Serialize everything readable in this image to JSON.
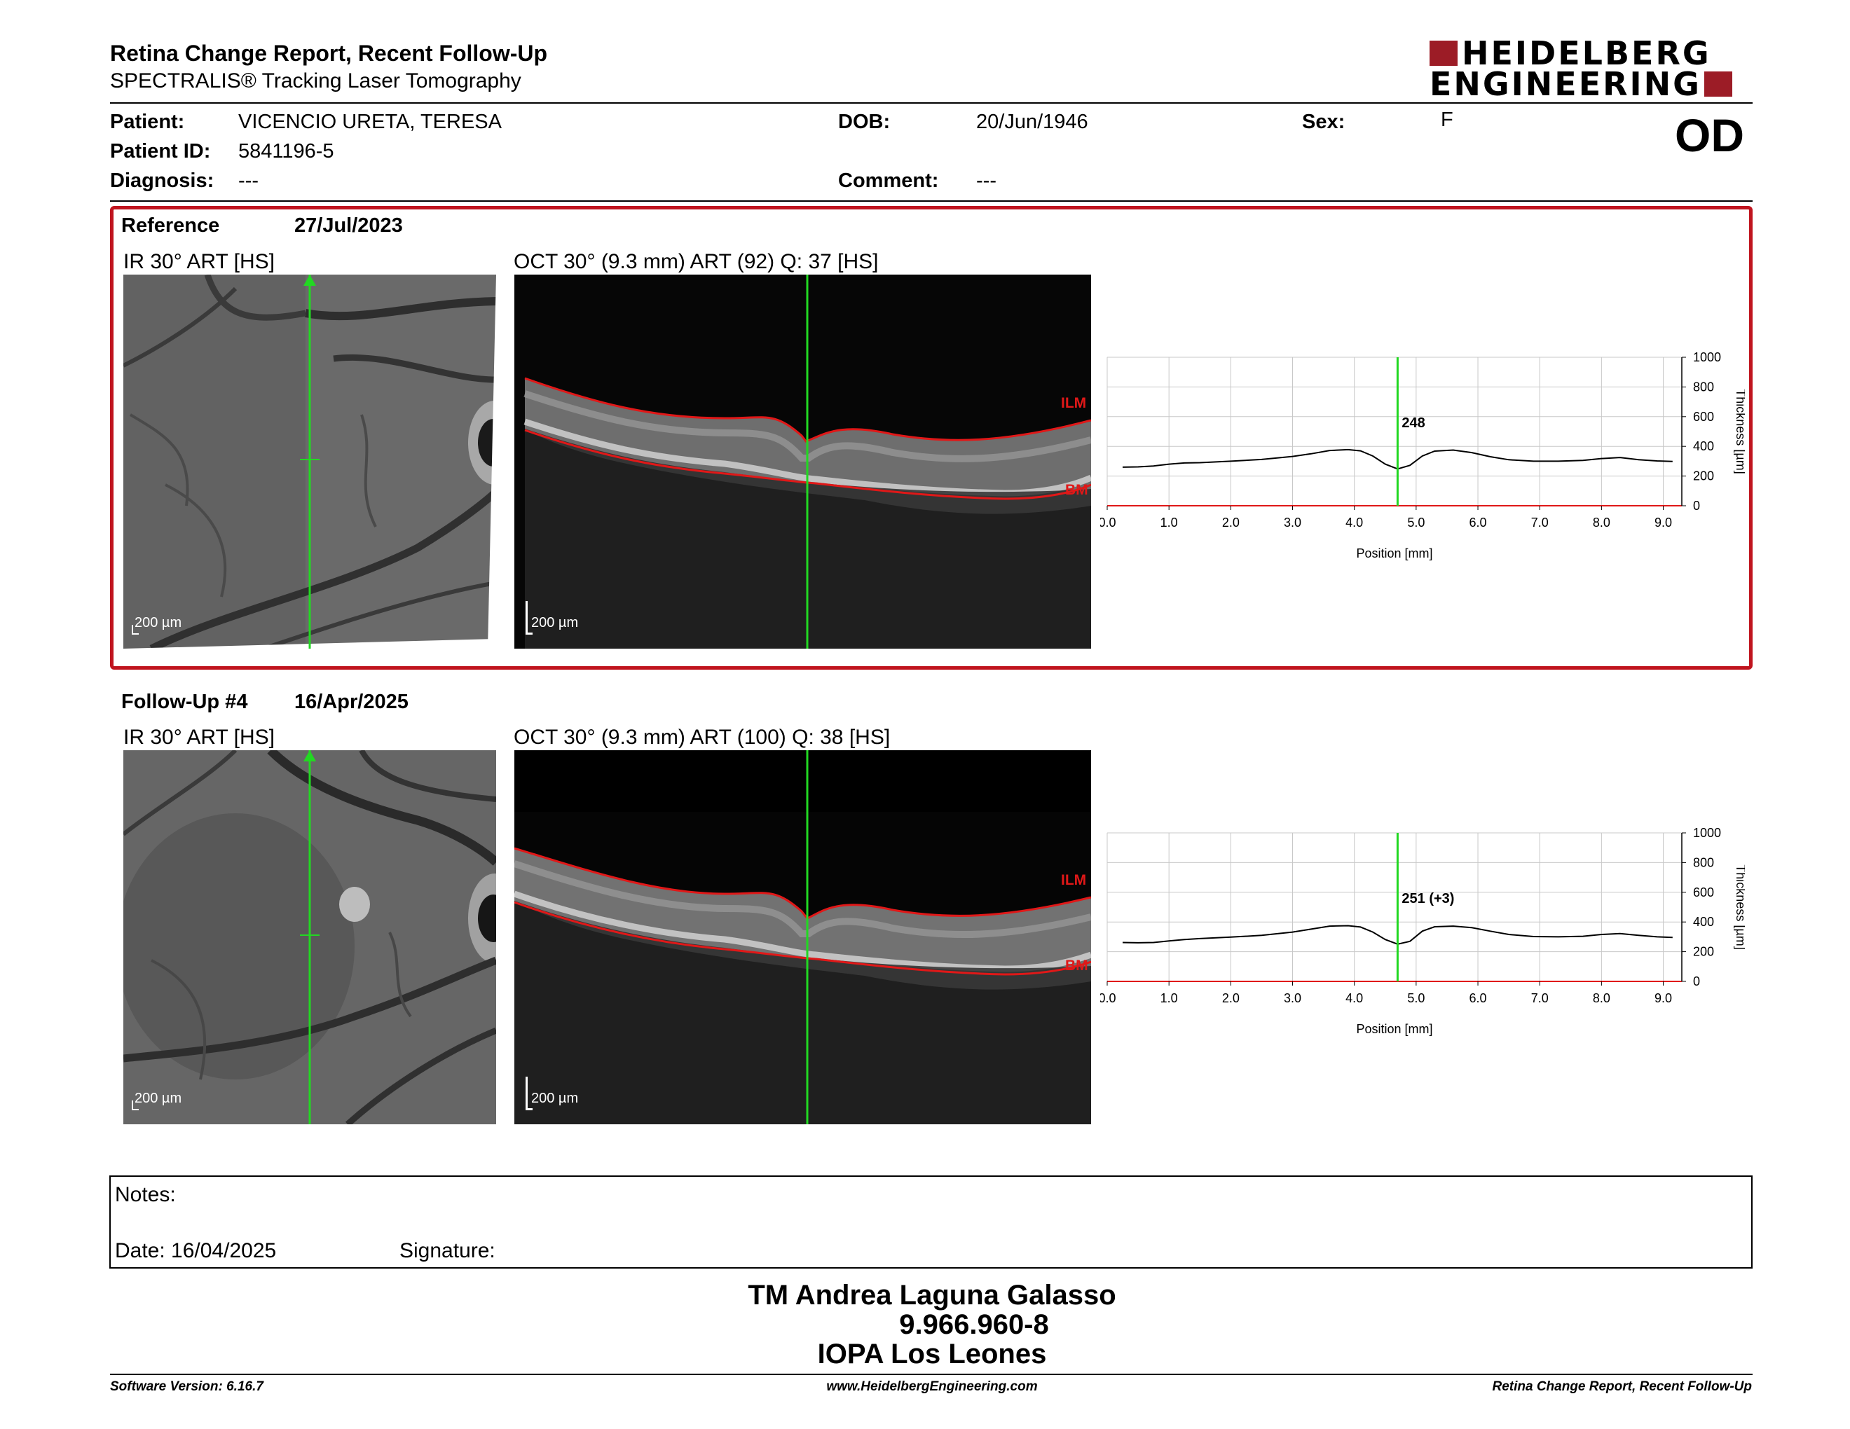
{
  "header": {
    "title": "Retina Change Report, Recent Follow-Up",
    "subtitle": "SPECTRALIS® Tracking Laser Tomography",
    "logo_line1": "HEIDELBERG",
    "logo_line2": "ENGINEERING",
    "eye": "OD"
  },
  "patient": {
    "patient_label": "Patient:",
    "patient_value": "VICENCIO URETA, TERESA",
    "id_label": "Patient ID:",
    "id_value": "5841196-5",
    "diagnosis_label": "Diagnosis:",
    "diagnosis_value": "---",
    "dob_label": "DOB:",
    "dob_value": "20/Jun/1946",
    "comment_label": "Comment:",
    "comment_value": "---",
    "sex_label": "Sex:",
    "sex_value": "F"
  },
  "reference": {
    "label": "Reference",
    "date": "27/Jul/2023",
    "ir_caption": "IR 30° ART [HS]",
    "oct_caption": "OCT 30° (9.3 mm) ART (92) Q: 37 [HS]",
    "ir_scale": "200 µm",
    "oct_scale": "200 µm",
    "ilm_label": "ILM",
    "bm_label": "BM"
  },
  "followup": {
    "label": "Follow-Up #4",
    "date": "16/Apr/2025",
    "ir_caption": "IR 30° ART [HS]",
    "oct_caption": "OCT 30° (9.3 mm) ART (100) Q: 38 [HS]",
    "ir_scale": "200 µm",
    "oct_scale": "200 µm",
    "ilm_label": "ILM",
    "bm_label": "BM"
  },
  "chart_data": [
    {
      "type": "line",
      "xlabel": "Position [mm]",
      "ylabel": "Thickness [µm]",
      "xlim": [
        0,
        9.3
      ],
      "ylim": [
        0,
        1000
      ],
      "x_ticks": [
        "0.0",
        "1.0",
        "2.0",
        "3.0",
        "4.0",
        "5.0",
        "6.0",
        "7.0",
        "8.0",
        "9.0"
      ],
      "y_ticks": [
        "0",
        "200",
        "400",
        "600",
        "800",
        "1000"
      ],
      "grid": true,
      "marker_x": 4.7,
      "marker_label": "248",
      "x": [
        0.25,
        0.5,
        0.75,
        1.0,
        1.25,
        1.5,
        2.0,
        2.5,
        3.0,
        3.3,
        3.6,
        3.9,
        4.1,
        4.3,
        4.5,
        4.7,
        4.9,
        5.1,
        5.3,
        5.6,
        5.9,
        6.2,
        6.5,
        6.9,
        7.3,
        7.7,
        8.0,
        8.3,
        8.6,
        8.9,
        9.15
      ],
      "y": [
        260,
        262,
        268,
        280,
        288,
        290,
        300,
        312,
        332,
        350,
        372,
        378,
        370,
        335,
        280,
        248,
        272,
        335,
        368,
        375,
        358,
        330,
        310,
        300,
        300,
        305,
        318,
        325,
        310,
        302,
        298
      ]
    },
    {
      "type": "line",
      "xlabel": "Position [mm]",
      "ylabel": "Thickness [µm]",
      "xlim": [
        0,
        9.3
      ],
      "ylim": [
        0,
        1000
      ],
      "x_ticks": [
        "0.0",
        "1.0",
        "2.0",
        "3.0",
        "4.0",
        "5.0",
        "6.0",
        "7.0",
        "8.0",
        "9.0"
      ],
      "y_ticks": [
        "0",
        "200",
        "400",
        "600",
        "800",
        "1000"
      ],
      "grid": true,
      "marker_x": 4.7,
      "marker_label": "251 (+3)",
      "x": [
        0.25,
        0.5,
        0.75,
        1.0,
        1.25,
        1.5,
        2.0,
        2.5,
        3.0,
        3.3,
        3.6,
        3.9,
        4.1,
        4.3,
        4.5,
        4.7,
        4.9,
        5.1,
        5.3,
        5.6,
        5.9,
        6.2,
        6.5,
        6.9,
        7.3,
        7.7,
        8.0,
        8.3,
        8.6,
        8.9,
        9.15
      ],
      "y": [
        262,
        260,
        262,
        272,
        282,
        288,
        298,
        310,
        332,
        352,
        372,
        375,
        366,
        332,
        282,
        251,
        270,
        338,
        368,
        372,
        362,
        338,
        316,
        302,
        300,
        304,
        316,
        322,
        310,
        300,
        296
      ]
    }
  ],
  "notes": {
    "label": "Notes:",
    "date_label": "Date: 16/04/2025",
    "signature_label": "Signature:"
  },
  "signer": {
    "name": "TM Andrea Laguna Galasso",
    "id": "9.966.960-8",
    "institution": "IOPA Los Leones"
  },
  "footer": {
    "version": "Software Version: 6.16.7",
    "website": "www.HeidelbergEngineering.com",
    "report_name": "Retina Change Report, Recent Follow-Up"
  },
  "colors": {
    "accent_red": "#c0141e",
    "logo_red": "#9c1c26",
    "scan_line_green": "#22d822",
    "layer_red": "#e01818"
  }
}
